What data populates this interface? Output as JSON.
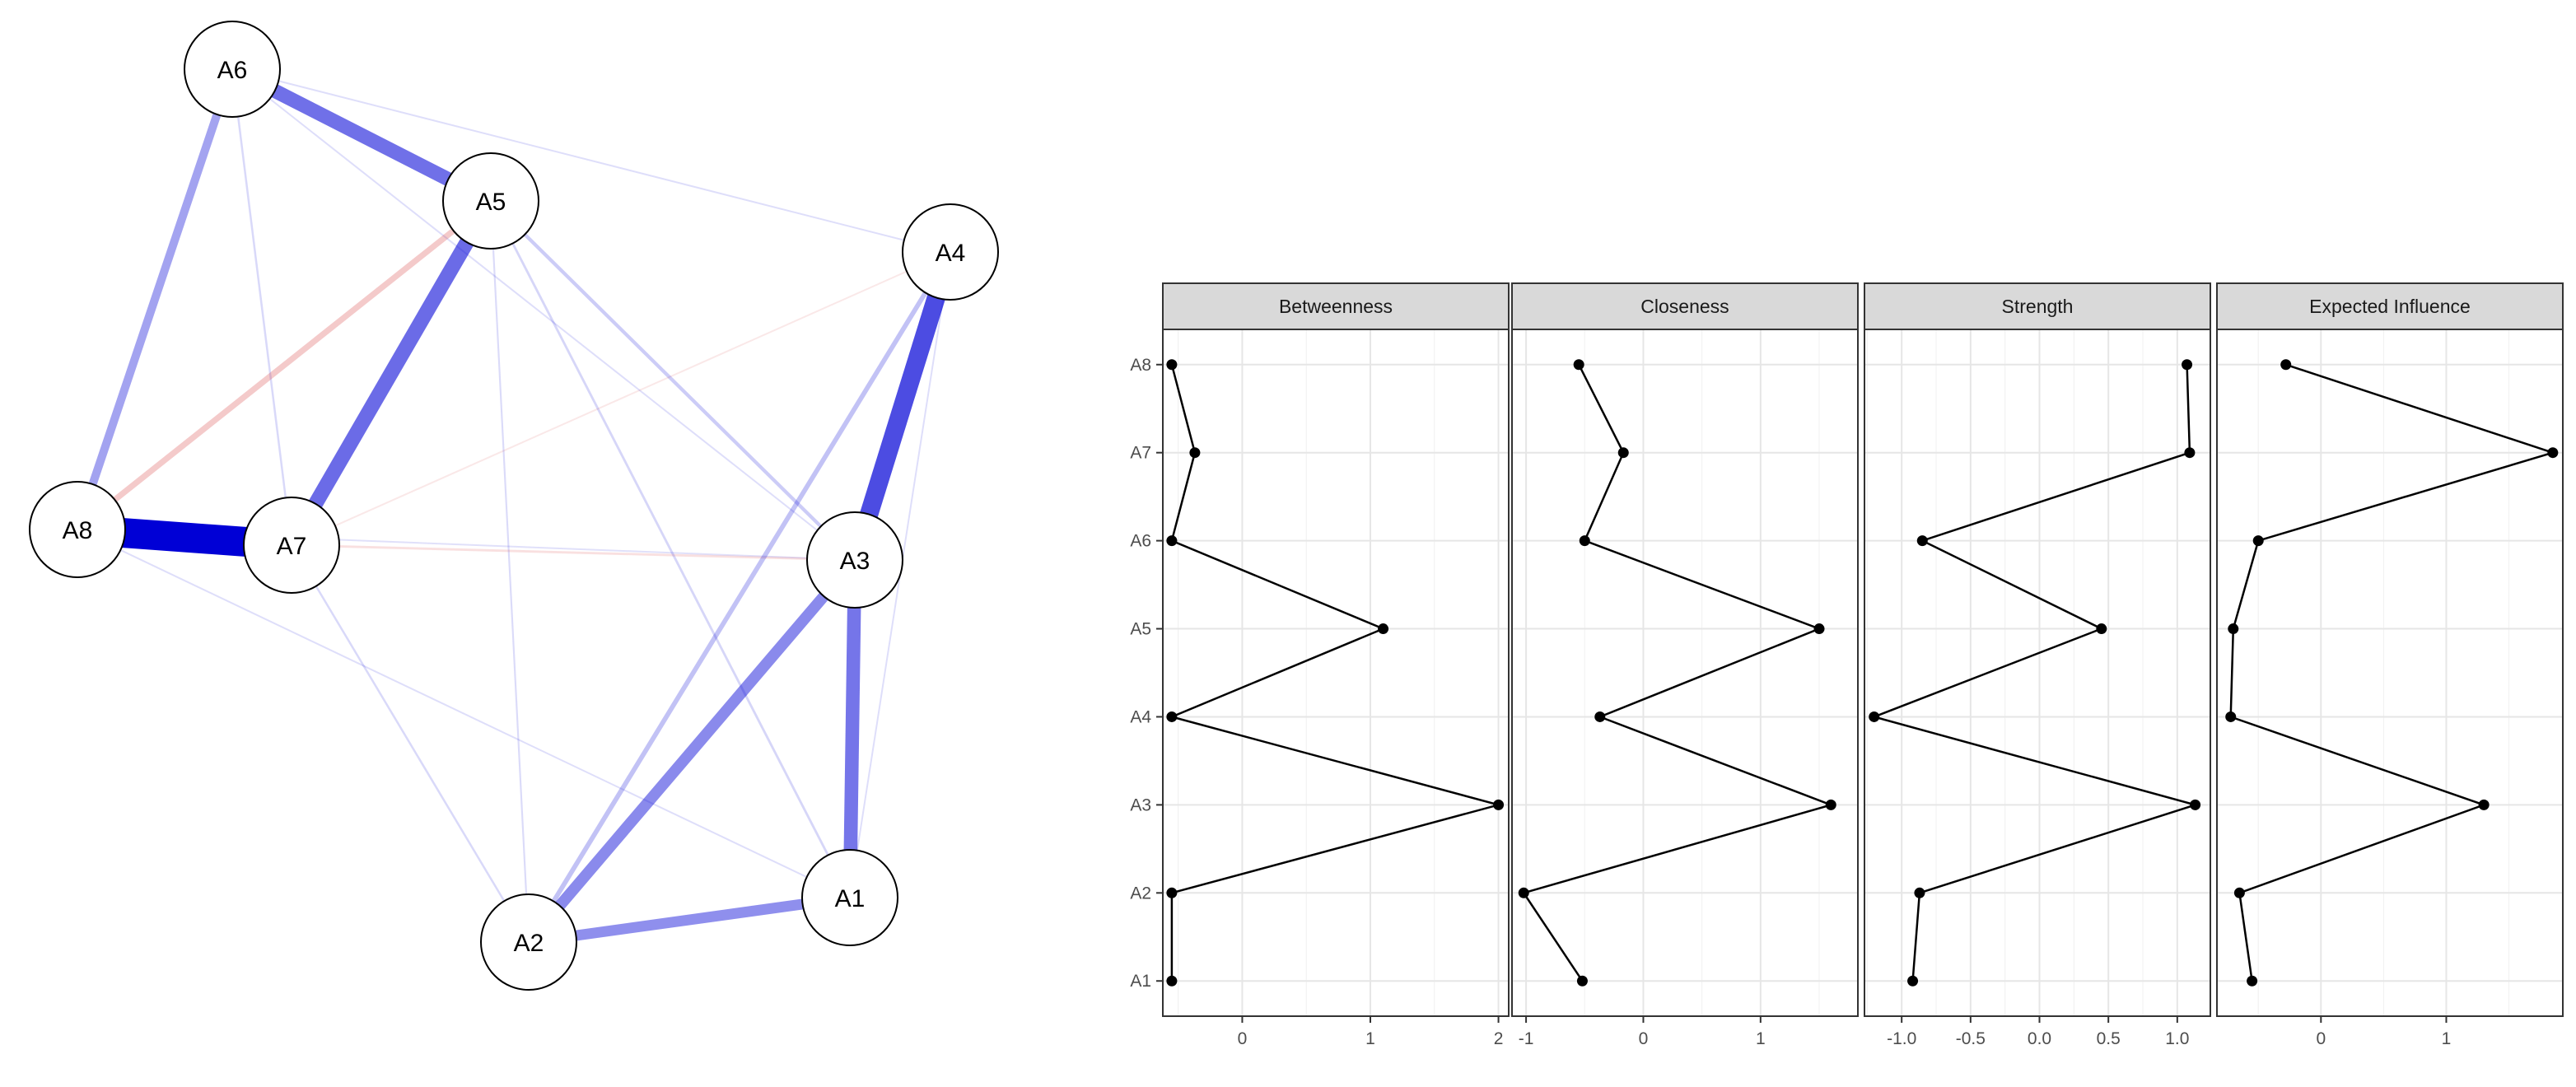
{
  "network": {
    "nodes": [
      "A6",
      "A5",
      "A4",
      "A8",
      "A7",
      "A3",
      "A1",
      "A2"
    ],
    "colors": {
      "positive": "#0000d6",
      "negative": "#d94040"
    },
    "edges": [
      {
        "from": "A8",
        "to": "A7",
        "sign": "positive",
        "weight": 1.0
      },
      {
        "from": "A4",
        "to": "A3",
        "sign": "positive",
        "weight": 0.62
      },
      {
        "from": "A5",
        "to": "A7",
        "sign": "positive",
        "weight": 0.5
      },
      {
        "from": "A6",
        "to": "A5",
        "sign": "positive",
        "weight": 0.48
      },
      {
        "from": "A3",
        "to": "A1",
        "sign": "positive",
        "weight": 0.46
      },
      {
        "from": "A3",
        "to": "A2",
        "sign": "positive",
        "weight": 0.38
      },
      {
        "from": "A2",
        "to": "A1",
        "sign": "positive",
        "weight": 0.36
      },
      {
        "from": "A6",
        "to": "A8",
        "sign": "positive",
        "weight": 0.28
      },
      {
        "from": "A5",
        "to": "A8",
        "sign": "negative",
        "weight": 0.2
      },
      {
        "from": "A4",
        "to": "A2",
        "sign": "positive",
        "weight": 0.16
      },
      {
        "from": "A5",
        "to": "A3",
        "sign": "positive",
        "weight": 0.12
      },
      {
        "from": "A7",
        "to": "A3",
        "sign": "negative",
        "weight": 0.08
      },
      {
        "from": "A6",
        "to": "A4",
        "sign": "positive",
        "weight": 0.05
      },
      {
        "from": "A6",
        "to": "A7",
        "sign": "positive",
        "weight": 0.07
      },
      {
        "from": "A5",
        "to": "A1",
        "sign": "positive",
        "weight": 0.08
      },
      {
        "from": "A7",
        "to": "A2",
        "sign": "positive",
        "weight": 0.07
      },
      {
        "from": "A5",
        "to": "A2",
        "sign": "positive",
        "weight": 0.06
      },
      {
        "from": "A8",
        "to": "A1",
        "sign": "positive",
        "weight": 0.05
      },
      {
        "from": "A6",
        "to": "A3",
        "sign": "positive",
        "weight": 0.05
      },
      {
        "from": "A4",
        "to": "A1",
        "sign": "positive",
        "weight": 0.05
      },
      {
        "from": "A4",
        "to": "A7",
        "sign": "negative",
        "weight": 0.04
      },
      {
        "from": "A8",
        "to": "A3",
        "sign": "positive",
        "weight": 0.04
      }
    ]
  },
  "chart_data": {
    "type": "line",
    "categories": [
      "A1",
      "A2",
      "A3",
      "A4",
      "A5",
      "A6",
      "A7",
      "A8"
    ],
    "panels": [
      {
        "title": "Betweenness",
        "xlim": [
          -0.62,
          2.08
        ],
        "ticks": [
          0,
          1,
          2
        ],
        "tick_labels": [
          "0",
          "1",
          "2"
        ],
        "values": [
          -0.55,
          -0.55,
          2.0,
          -0.55,
          1.1,
          -0.55,
          -0.37,
          -0.55
        ]
      },
      {
        "title": "Closeness",
        "xlim": [
          -1.12,
          1.83
        ],
        "ticks": [
          -1,
          0,
          1
        ],
        "tick_labels": [
          "-1",
          "0",
          "1"
        ],
        "values": [
          -0.52,
          -1.02,
          1.6,
          -0.37,
          1.5,
          -0.5,
          -0.17,
          -0.55
        ]
      },
      {
        "title": "Strength",
        "xlim": [
          -1.27,
          1.24
        ],
        "ticks": [
          -1.0,
          -0.5,
          0.0,
          0.5,
          1.0
        ],
        "tick_labels": [
          "-1.0",
          "-0.5",
          "0.0",
          "0.5",
          "1.0"
        ],
        "values": [
          -0.92,
          -0.87,
          1.13,
          -1.2,
          0.45,
          -0.85,
          1.09,
          1.07
        ]
      },
      {
        "title": "Expected Influence",
        "xlim": [
          -0.83,
          1.93
        ],
        "ticks": [
          0,
          1
        ],
        "tick_labels": [
          "0",
          "1"
        ],
        "values": [
          -0.55,
          -0.65,
          1.3,
          -0.72,
          -0.7,
          -0.5,
          1.85,
          -0.28
        ]
      }
    ],
    "grid": true,
    "legend": "none"
  }
}
